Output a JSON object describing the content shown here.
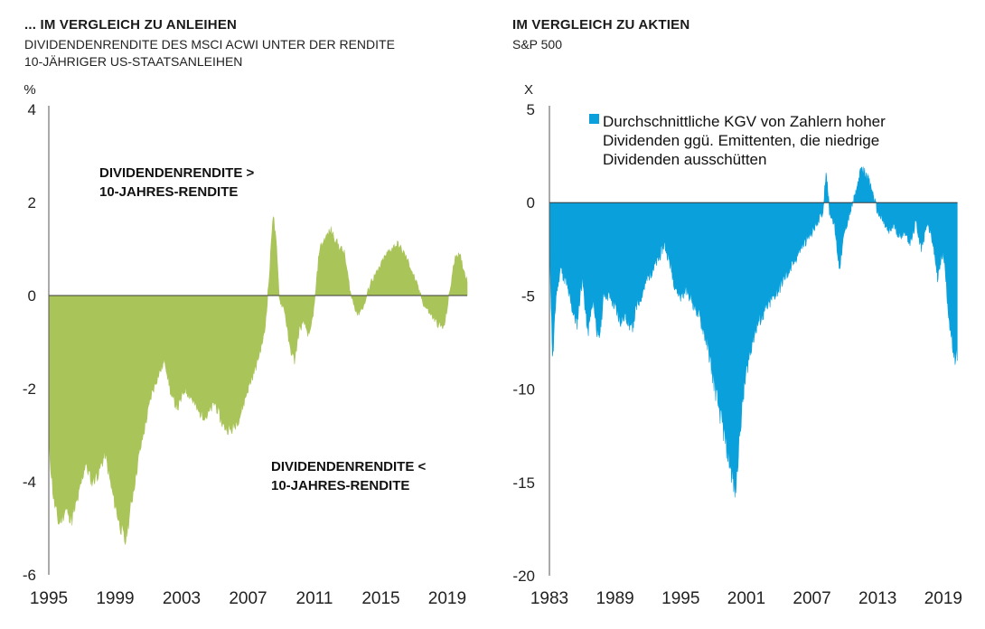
{
  "chart_data": [
    {
      "type": "area",
      "title": "... IM VERGLEICH ZU ANLEIHEN",
      "subtitle_lines": [
        "DIVIDENDENRENDITE DES MSCI ACWI UNTER DER RENDITE",
        "10-JÄHRIGER US-STAATSANLEIHEN"
      ],
      "ylabel": "%",
      "ylim": [
        -6,
        4
      ],
      "yticks": [
        4,
        2,
        0,
        -2,
        -4,
        -6
      ],
      "xlim": [
        1995.0,
        2020.2
      ],
      "xticks": [
        1995,
        1999,
        2003,
        2007,
        2011,
        2015,
        2019
      ],
      "color": "#a9c458",
      "annotations": [
        {
          "lines": [
            "DIVIDENDENRENDITE >",
            "10-JAHRES-RENDITE"
          ]
        },
        {
          "lines": [
            "DIVIDENDENRENDITE <",
            "10-JAHRES-RENDITE"
          ]
        }
      ],
      "x": [
        1995.0,
        1995.3,
        1995.6,
        1996.0,
        1996.4,
        1996.8,
        1997.2,
        1997.6,
        1998.0,
        1998.4,
        1998.8,
        1999.2,
        1999.6,
        2000.0,
        2000.4,
        2000.8,
        2001.2,
        2001.6,
        2002.0,
        2002.4,
        2002.8,
        2003.2,
        2003.6,
        2004.0,
        2004.5,
        2005.0,
        2005.5,
        2006.0,
        2006.5,
        2007.0,
        2007.5,
        2008.0,
        2008.3,
        2008.5,
        2008.7,
        2008.9,
        2009.2,
        2009.5,
        2009.8,
        2010.1,
        2010.4,
        2010.7,
        2011.0,
        2011.3,
        2011.6,
        2012.0,
        2012.4,
        2012.8,
        2013.2,
        2013.6,
        2014.0,
        2014.4,
        2014.8,
        2015.2,
        2015.6,
        2016.0,
        2016.4,
        2016.8,
        2017.2,
        2017.6,
        2018.0,
        2018.4,
        2018.8,
        2019.2,
        2019.5,
        2019.8,
        2020.2
      ],
      "values": [
        -3.2,
        -4.4,
        -4.9,
        -4.6,
        -4.8,
        -4.3,
        -3.6,
        -4.0,
        -3.8,
        -3.4,
        -4.2,
        -4.8,
        -5.3,
        -4.4,
        -3.5,
        -2.8,
        -2.1,
        -1.7,
        -1.4,
        -2.2,
        -2.4,
        -2.0,
        -2.2,
        -2.5,
        -2.6,
        -2.3,
        -2.8,
        -2.9,
        -2.6,
        -2.0,
        -1.5,
        -0.8,
        0.5,
        1.8,
        1.1,
        -0.1,
        -0.3,
        -1.1,
        -1.4,
        -0.7,
        -0.6,
        -0.9,
        -0.2,
        1.0,
        1.2,
        1.4,
        1.1,
        0.9,
        0.0,
        -0.4,
        -0.2,
        0.3,
        0.5,
        0.8,
        1.0,
        1.1,
        0.9,
        0.6,
        0.2,
        -0.2,
        -0.4,
        -0.6,
        -0.7,
        0.2,
        0.9,
        0.8,
        0.3
      ]
    },
    {
      "type": "area",
      "title": "IM VERGLEICH ZU AKTIEN",
      "subtitle_lines": [
        "S&P 500"
      ],
      "ylabel": "X",
      "ylim": [
        -20,
        5
      ],
      "yticks": [
        5,
        0,
        -5,
        -10,
        -15,
        -20
      ],
      "xlim": [
        1983.0,
        2020.5
      ],
      "xticks": [
        1983,
        1989,
        1995,
        2001,
        2007,
        2013,
        2019
      ],
      "color": "#0aa0dc",
      "legend": "Durchschnittliche KGV von Zahlern hoher Dividenden ggü. Emittenten, die niedrige Dividenden ausschütten",
      "legend_lines": [
        "Durchschnittliche KGV von Zahlern hoher",
        "Dividenden ggü. Emittenten, die niedrige",
        "Dividenden ausschütten"
      ],
      "x": [
        1983.0,
        1983.3,
        1983.6,
        1984.0,
        1984.5,
        1985.0,
        1985.5,
        1986.0,
        1986.5,
        1987.0,
        1987.5,
        1988.0,
        1988.5,
        1989.0,
        1989.5,
        1990.0,
        1990.5,
        1991.0,
        1991.5,
        1992.0,
        1992.5,
        1993.0,
        1993.5,
        1994.0,
        1994.5,
        1995.0,
        1995.5,
        1996.0,
        1996.5,
        1997.0,
        1997.5,
        1998.0,
        1998.5,
        1999.0,
        1999.5,
        2000.0,
        2000.3,
        2000.6,
        2001.0,
        2001.5,
        2002.0,
        2002.5,
        2003.0,
        2003.5,
        2004.0,
        2004.5,
        2005.0,
        2005.5,
        2006.0,
        2006.5,
        2007.0,
        2007.5,
        2008.0,
        2008.3,
        2008.6,
        2009.0,
        2009.5,
        2010.0,
        2010.5,
        2011.0,
        2011.5,
        2012.0,
        2012.5,
        2013.0,
        2013.5,
        2014.0,
        2014.5,
        2015.0,
        2015.5,
        2016.0,
        2016.5,
        2017.0,
        2017.5,
        2018.0,
        2018.5,
        2019.0,
        2019.5,
        2020.0,
        2020.3
      ],
      "values": [
        -2.0,
        -8.5,
        -5.0,
        -3.5,
        -4.2,
        -5.5,
        -6.5,
        -4.0,
        -7.0,
        -5.2,
        -7.5,
        -4.8,
        -5.0,
        -5.6,
        -6.3,
        -6.0,
        -6.8,
        -5.5,
        -4.8,
        -4.0,
        -3.5,
        -3.0,
        -2.2,
        -3.2,
        -4.5,
        -5.0,
        -4.6,
        -5.2,
        -5.8,
        -6.6,
        -7.8,
        -9.5,
        -11.0,
        -12.5,
        -14.0,
        -15.5,
        -13.0,
        -11.0,
        -9.0,
        -7.5,
        -6.5,
        -6.0,
        -5.5,
        -5.0,
        -4.6,
        -4.0,
        -3.6,
        -3.0,
        -2.4,
        -2.0,
        -1.6,
        -1.0,
        -0.5,
        1.8,
        -0.5,
        -1.0,
        -3.5,
        -1.5,
        -0.5,
        0.5,
        1.8,
        1.5,
        0.6,
        -0.5,
        -1.0,
        -1.6,
        -1.2,
        -1.8,
        -1.5,
        -2.2,
        -1.0,
        -2.5,
        -1.0,
        -2.0,
        -4.0,
        -2.5,
        -6.0,
        -8.5,
        -8.0
      ]
    }
  ]
}
